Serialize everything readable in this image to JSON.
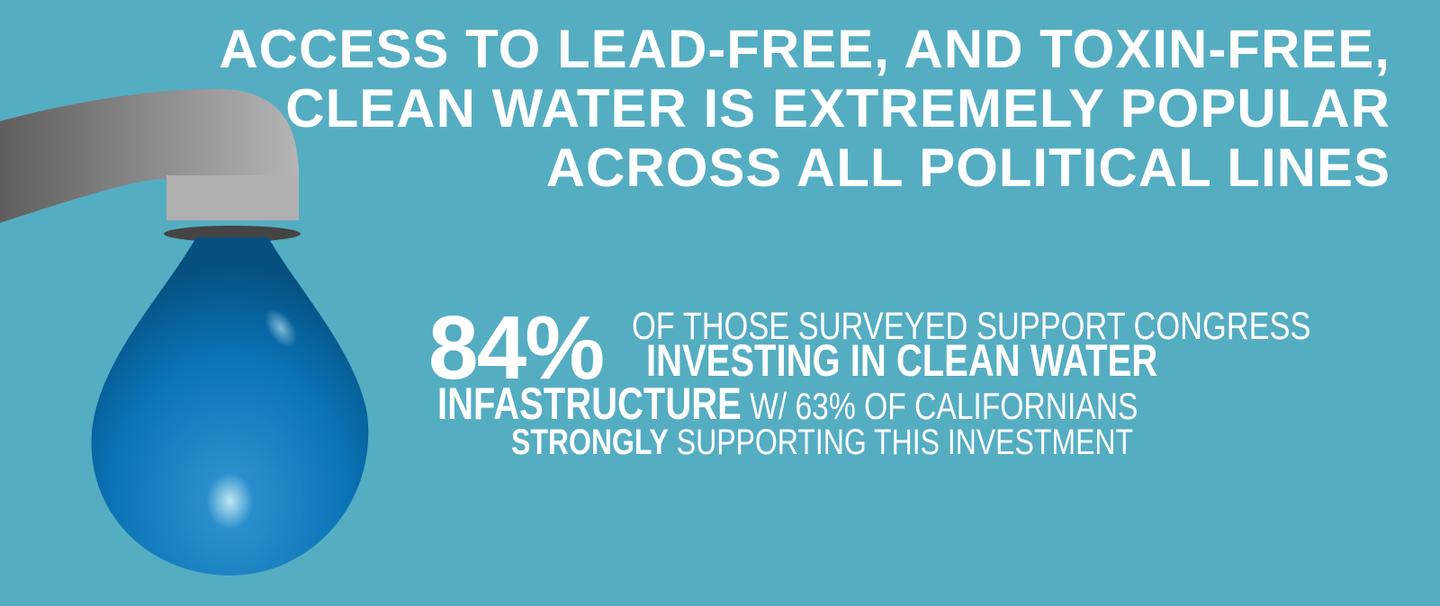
{
  "headline": {
    "lines": [
      "ACCESS TO LEAD-FREE, AND TOXIN-FREE,",
      "CLEAN WATER IS EXTREMELY POPULAR",
      "ACROSS ALL POLITICAL LINES"
    ]
  },
  "stat": {
    "percent": "84%",
    "line1": "OF THOSE SURVEYED SUPPORT CONGRESS",
    "line2": "INVESTING IN CLEAN WATER",
    "line3_bold": "INFASTRUCTURE",
    "line3_rest": " W/ 63% OF CALIFORNIANS",
    "line4_bold": "STRONGLY",
    "line4_rest": " SUPPORTING THIS INVESTMENT"
  },
  "colors": {
    "background": "#55adc2",
    "drop": "#0a6fb0",
    "faucet": "#a8a8a8",
    "text": "#ffffff"
  },
  "icons": [
    "faucet-icon",
    "water-drop-icon"
  ]
}
